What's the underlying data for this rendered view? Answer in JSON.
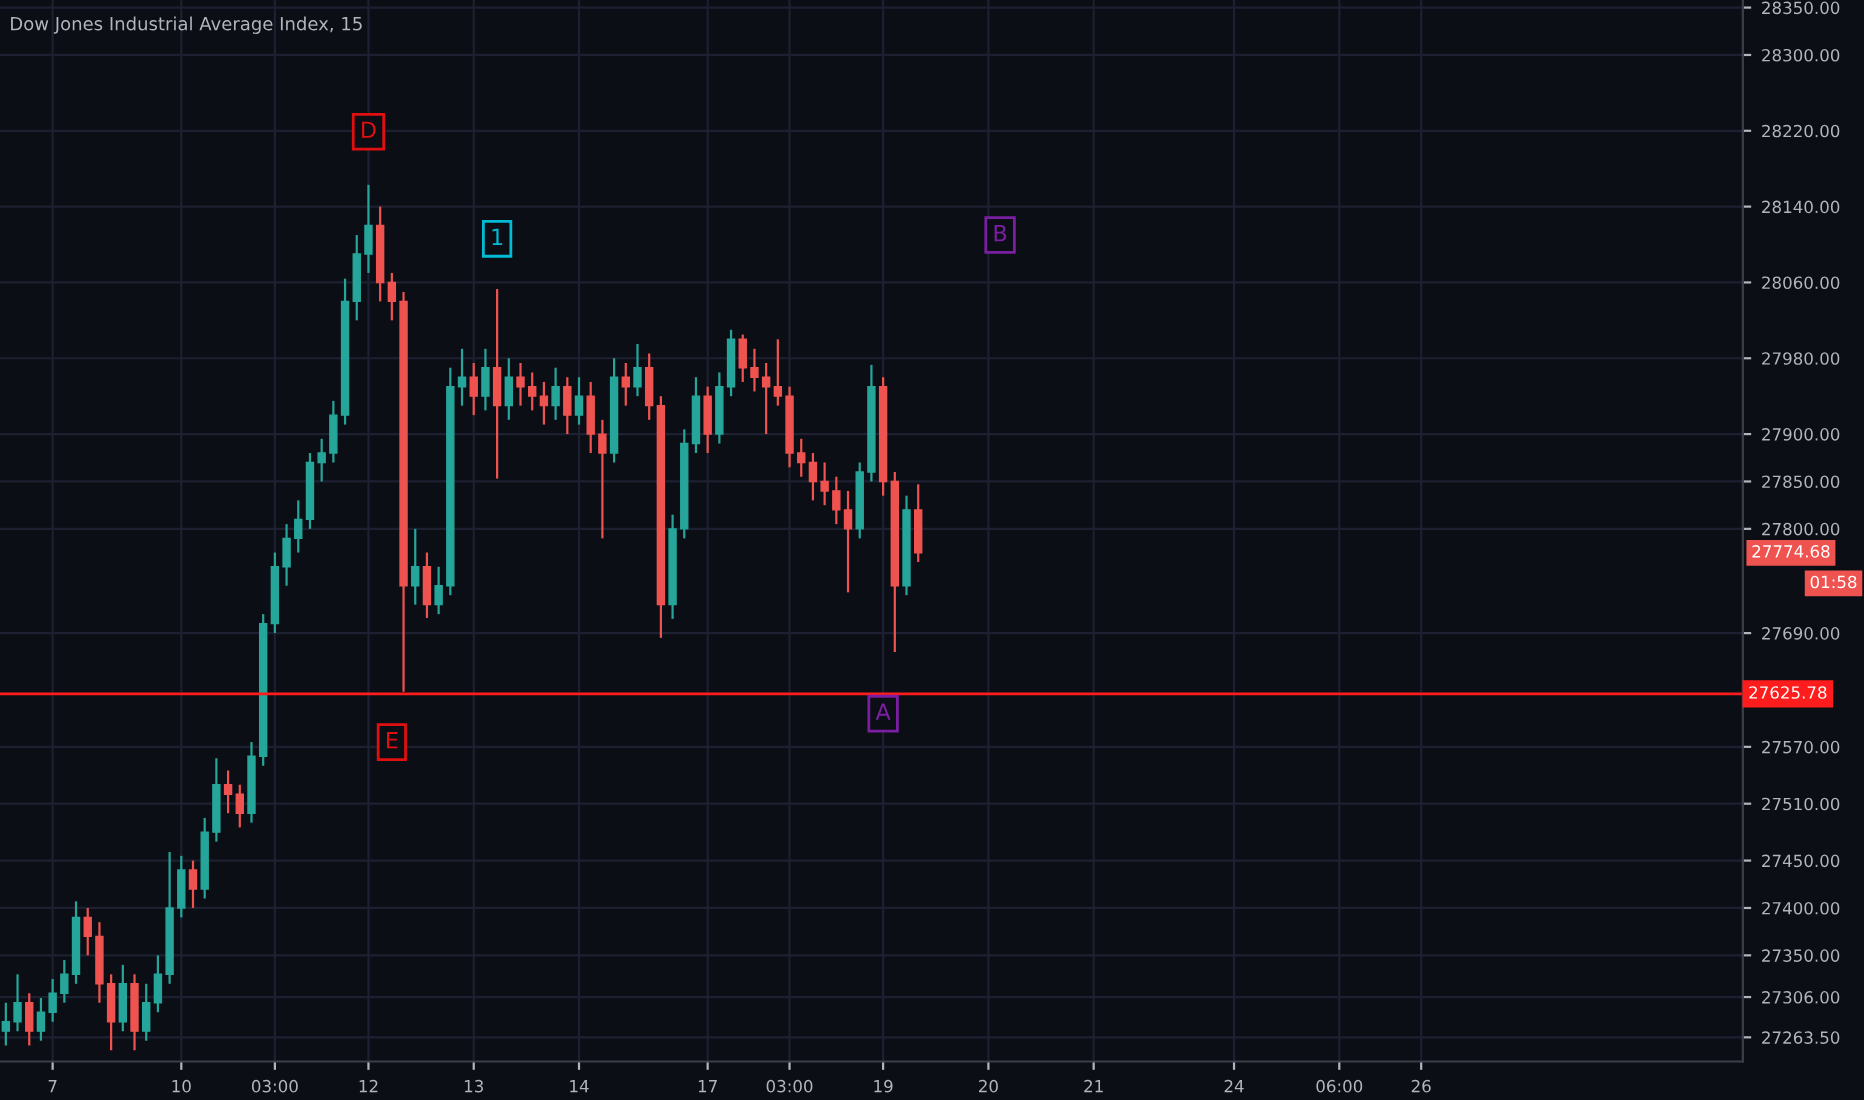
{
  "chart_data": {
    "type": "candlestick",
    "title": "Dow Jones Industrial Average Index, 15",
    "categories": [
      null,
      null,
      null,
      null,
      "7",
      null,
      null,
      null,
      null,
      null,
      null,
      null,
      null,
      null,
      null,
      "10",
      null,
      null,
      null,
      null,
      null,
      null,
      null,
      "03:00",
      null,
      null,
      null,
      null,
      null,
      null,
      null,
      "12",
      null,
      null,
      null,
      null,
      null,
      null,
      null,
      null,
      "13",
      null,
      null,
      null,
      null,
      null,
      null,
      null,
      null,
      "14",
      null,
      null,
      null,
      null,
      null,
      null,
      null,
      null,
      null,
      null,
      "17",
      null,
      null,
      null,
      null,
      null,
      null,
      "03:00",
      null,
      null,
      null,
      null,
      null,
      null,
      null,
      "19",
      null,
      null,
      null,
      null,
      null,
      null,
      null,
      null,
      "20",
      null,
      null,
      null,
      null,
      null,
      null,
      null,
      null,
      "21",
      null,
      null,
      null,
      null,
      null,
      null,
      null,
      null,
      null,
      null,
      null,
      "24",
      null,
      null,
      null,
      null,
      null,
      null,
      null,
      null,
      "06:00",
      null,
      null,
      null,
      null,
      null,
      null,
      "26",
      null,
      null,
      null,
      null,
      null,
      null,
      null,
      null,
      null,
      null,
      null,
      null,
      null,
      null,
      null,
      null,
      null,
      null,
      null,
      null,
      null,
      null,
      null,
      null,
      null,
      null,
      null
    ],
    "ohlc": [
      [
        27270,
        27300,
        27255,
        27280
      ],
      [
        27280,
        27330,
        27270,
        27300
      ],
      [
        27300,
        27310,
        27255,
        27270
      ],
      [
        27270,
        27305,
        27260,
        27290
      ],
      [
        27290,
        27325,
        27280,
        27310
      ],
      [
        27310,
        27345,
        27300,
        27330
      ],
      [
        27330,
        27407,
        27320,
        27390
      ],
      [
        27390,
        27400,
        27350,
        27370
      ],
      [
        27370,
        27385,
        27300,
        27320
      ],
      [
        27320,
        27330,
        27250,
        27280
      ],
      [
        27280,
        27340,
        27270,
        27320
      ],
      [
        27320,
        27330,
        27250,
        27270
      ],
      [
        27270,
        27320,
        27260,
        27300
      ],
      [
        27300,
        27350,
        27290,
        27330
      ],
      [
        27330,
        27459,
        27320,
        27400
      ],
      [
        27400,
        27455,
        27390,
        27440
      ],
      [
        27440,
        27450,
        27400,
        27420
      ],
      [
        27420,
        27495,
        27410,
        27480
      ],
      [
        27480,
        27558,
        27470,
        27530
      ],
      [
        27530,
        27545,
        27500,
        27520
      ],
      [
        27520,
        27530,
        27485,
        27500
      ],
      [
        27500,
        27575,
        27490,
        27560
      ],
      [
        27560,
        27710,
        27550,
        27700
      ],
      [
        27700,
        27775,
        27690,
        27760
      ],
      [
        27760,
        27805,
        27740,
        27790
      ],
      [
        27790,
        27830,
        27775,
        27810
      ],
      [
        27810,
        27880,
        27800,
        27870
      ],
      [
        27870,
        27895,
        27850,
        27880
      ],
      [
        27880,
        27935,
        27870,
        27920
      ],
      [
        27920,
        28064,
        27910,
        28040
      ],
      [
        28040,
        28110,
        28020,
        28090
      ],
      [
        28090,
        28163,
        28070,
        28120
      ],
      [
        28120,
        28140,
        28040,
        28060
      ],
      [
        28060,
        28070,
        28020,
        28040
      ],
      [
        28040,
        28050,
        27628,
        27740
      ],
      [
        27740,
        27800,
        27720,
        27760
      ],
      [
        27760,
        27775,
        27706,
        27720
      ],
      [
        27720,
        27760,
        27710,
        27740
      ],
      [
        27740,
        27970,
        27730,
        27950
      ],
      [
        27950,
        27990,
        27930,
        27960
      ],
      [
        27960,
        27975,
        27920,
        27940
      ],
      [
        27940,
        27990,
        27925,
        27970
      ],
      [
        27970,
        28053,
        27853,
        27930
      ],
      [
        27930,
        27980,
        27915,
        27960
      ],
      [
        27960,
        27975,
        27930,
        27950
      ],
      [
        27950,
        27965,
        27925,
        27940
      ],
      [
        27940,
        27955,
        27910,
        27930
      ],
      [
        27930,
        27970,
        27915,
        27950
      ],
      [
        27950,
        27960,
        27900,
        27920
      ],
      [
        27920,
        27960,
        27910,
        27940
      ],
      [
        27940,
        27955,
        27880,
        27900
      ],
      [
        27900,
        27915,
        27790,
        27880
      ],
      [
        27880,
        27980,
        27870,
        27960
      ],
      [
        27960,
        27975,
        27930,
        27950
      ],
      [
        27950,
        27995,
        27940,
        27970
      ],
      [
        27970,
        27985,
        27915,
        27930
      ],
      [
        27930,
        27940,
        27685,
        27720
      ],
      [
        27720,
        27815,
        27705,
        27800
      ],
      [
        27800,
        27905,
        27790,
        27890
      ],
      [
        27890,
        27960,
        27880,
        27940
      ],
      [
        27940,
        27950,
        27880,
        27900
      ],
      [
        27900,
        27965,
        27890,
        27950
      ],
      [
        27950,
        28010,
        27940,
        28000
      ],
      [
        28000,
        28005,
        27955,
        27970
      ],
      [
        27970,
        27990,
        27945,
        27960
      ],
      [
        27960,
        27975,
        27900,
        27950
      ],
      [
        27950,
        28000,
        27930,
        27940
      ],
      [
        27940,
        27950,
        27865,
        27880
      ],
      [
        27880,
        27895,
        27855,
        27870
      ],
      [
        27870,
        27880,
        27830,
        27850
      ],
      [
        27850,
        27870,
        27825,
        27840
      ],
      [
        27840,
        27855,
        27805,
        27820
      ],
      [
        27820,
        27840,
        27733,
        27800
      ],
      [
        27800,
        27870,
        27790,
        27860
      ],
      [
        27860,
        27973,
        27850,
        27950
      ],
      [
        27950,
        27960,
        27835,
        27850
      ],
      [
        27850,
        27860,
        27670,
        27740
      ],
      [
        27740,
        27835,
        27730,
        27820
      ],
      [
        27820,
        27847,
        27765,
        27774.68
      ],
      null,
      null,
      null,
      null,
      null,
      null,
      null,
      null,
      null,
      null,
      null,
      null,
      null,
      null,
      null,
      null,
      null,
      null,
      null,
      null,
      null,
      null,
      null,
      null,
      null,
      null,
      null,
      null,
      null,
      null,
      null,
      null,
      null,
      null,
      null,
      null,
      null,
      null,
      null,
      null,
      null,
      null,
      null,
      null,
      null,
      null,
      null,
      null,
      null,
      null,
      null,
      null,
      null,
      null,
      null,
      null,
      null,
      null,
      null,
      null,
      null,
      null,
      null,
      null,
      null,
      null,
      null,
      null,
      null,
      null
    ],
    "ylim": [
      27238,
      28358
    ],
    "yticks": [
      {
        "value": 28350,
        "label": "28350.00"
      },
      {
        "value": 28300,
        "label": "28300.00"
      },
      {
        "value": 28220,
        "label": "28220.00"
      },
      {
        "value": 28140,
        "label": "28140.00"
      },
      {
        "value": 28060,
        "label": "28060.00"
      },
      {
        "value": 27980,
        "label": "27980.00"
      },
      {
        "value": 27900,
        "label": "27900.00"
      },
      {
        "value": 27850,
        "label": "27850.00"
      },
      {
        "value": 27800,
        "label": "27800.00"
      },
      {
        "value": 27690,
        "label": "27690.00"
      },
      {
        "value": 27570,
        "label": "27570.00"
      },
      {
        "value": 27510,
        "label": "27510.00"
      },
      {
        "value": 27450,
        "label": "27450.00"
      },
      {
        "value": 27400,
        "label": "27400.00"
      },
      {
        "value": 27350,
        "label": "27350.00"
      },
      {
        "value": 27306,
        "label": "27306.00"
      },
      {
        "value": 27263.5,
        "label": "27263.50"
      }
    ],
    "grid": true,
    "ref_lines": [
      {
        "axis": "y",
        "value": 27625.78,
        "label": "27625.78",
        "color": "#ff1c1c"
      }
    ],
    "annotations": [
      {
        "text": "D",
        "x": "12",
        "y": 28219
      },
      {
        "text": "E",
        "y": 27575
      },
      {
        "text": "1",
        "y": 28106
      },
      {
        "text": "A",
        "x": "19",
        "y": 27605
      },
      {
        "text": "B",
        "y": 28110
      },
      "27774.68",
      "01:58"
    ]
  }
}
